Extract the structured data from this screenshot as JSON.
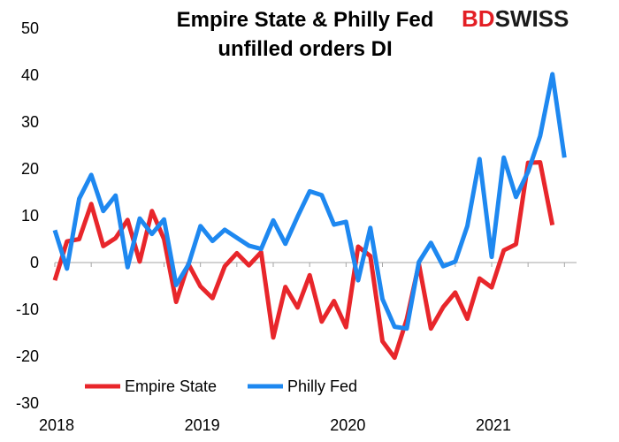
{
  "brand": {
    "prefix": "BD",
    "suffix": "SWISS",
    "prefix_color": "#e31e24",
    "suffix_color": "#1a1a1a"
  },
  "chart_data": {
    "type": "line",
    "title_lines": [
      "Empire State & Philly Fed",
      "unfilled orders DI"
    ],
    "xlabel": "",
    "ylabel": "",
    "ylim": [
      -30,
      50
    ],
    "yticks": [
      -30,
      -20,
      -10,
      0,
      10,
      20,
      30,
      40,
      50
    ],
    "xlim": [
      2018.0,
      2021.583
    ],
    "xticks": [
      {
        "value": 2018,
        "label": "2018"
      },
      {
        "value": 2019,
        "label": "2019"
      },
      {
        "value": 2020,
        "label": "2020"
      },
      {
        "value": 2021,
        "label": "2021"
      }
    ],
    "grid": false,
    "legend": "bottom-left",
    "x": [
      2018.0,
      2018.083,
      2018.167,
      2018.25,
      2018.333,
      2018.417,
      2018.5,
      2018.583,
      2018.667,
      2018.75,
      2018.833,
      2018.917,
      2019.0,
      2019.083,
      2019.167,
      2019.25,
      2019.333,
      2019.417,
      2019.5,
      2019.583,
      2019.667,
      2019.75,
      2019.833,
      2019.917,
      2020.0,
      2020.083,
      2020.167,
      2020.25,
      2020.333,
      2020.417,
      2020.5,
      2020.583,
      2020.667,
      2020.75,
      2020.833,
      2020.917,
      2021.0,
      2021.083,
      2021.167,
      2021.25,
      2021.333,
      2021.417,
      2021.5
    ],
    "series": [
      {
        "name": "Empire State",
        "color": "#e8262b",
        "values": [
          -3.8,
          4.5,
          5.0,
          12.5,
          3.5,
          5.2,
          9.1,
          0.2,
          11.0,
          5.0,
          -8.4,
          -0.3,
          -5.1,
          -7.6,
          -0.8,
          2.0,
          -0.6,
          2.2,
          -16.0,
          -5.2,
          -9.6,
          -2.7,
          -12.6,
          -8.2,
          -13.8,
          3.4,
          1.4,
          -16.8,
          -20.3,
          -12.1,
          -0.3,
          -14.1,
          -9.5,
          -6.4,
          -12.0,
          -3.4,
          -5.3,
          2.6,
          3.9,
          21.3,
          21.4,
          8.0,
          null
        ]
      },
      {
        "name": "Philly Fed",
        "color": "#1e88f0",
        "values": [
          6.9,
          -1.3,
          13.6,
          18.7,
          11.0,
          14.3,
          -1.0,
          9.4,
          6.1,
          9.2,
          -4.8,
          -0.5,
          7.8,
          4.6,
          7.0,
          5.3,
          3.6,
          2.9,
          9.0,
          4.0,
          9.8,
          15.2,
          14.4,
          8.1,
          8.7,
          -3.8,
          7.4,
          -7.8,
          -13.7,
          -14.1,
          0.1,
          4.2,
          -0.8,
          0.2,
          7.8,
          22.1,
          1.2,
          22.4,
          14.0,
          19.4,
          27.0,
          40.2,
          22.4
        ]
      }
    ]
  }
}
